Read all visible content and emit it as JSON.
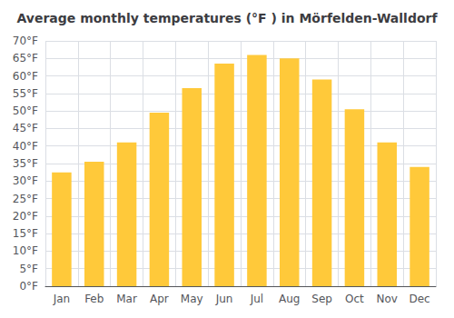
{
  "chart_data": {
    "type": "bar",
    "title": "Average monthly temperatures (°F ) in Mörfelden-Walldorf",
    "categories": [
      "Jan",
      "Feb",
      "Mar",
      "Apr",
      "May",
      "Jun",
      "Jul",
      "Aug",
      "Sep",
      "Oct",
      "Nov",
      "Dec"
    ],
    "values": [
      32.5,
      35.5,
      41.0,
      49.5,
      56.5,
      63.5,
      66.0,
      65.0,
      59.0,
      50.5,
      41.0,
      34.0
    ],
    "color": "#FFC93A",
    "ylim": [
      0,
      70
    ],
    "yticks": [
      {
        "value": 0,
        "label": "0°F"
      },
      {
        "value": 5,
        "label": "5°F"
      },
      {
        "value": 10,
        "label": "10°F"
      },
      {
        "value": 15,
        "label": "15°F"
      },
      {
        "value": 20,
        "label": "20°F"
      },
      {
        "value": 25,
        "label": "25°F"
      },
      {
        "value": 30,
        "label": "30°F"
      },
      {
        "value": 35,
        "label": "35°F"
      },
      {
        "value": 40,
        "label": "40°F"
      },
      {
        "value": 45,
        "label": "45°F"
      },
      {
        "value": 50,
        "label": "50°F"
      },
      {
        "value": 55,
        "label": "55°F"
      },
      {
        "value": 60,
        "label": "60°F"
      },
      {
        "value": 65,
        "label": "65°F"
      },
      {
        "value": 70,
        "label": "70°F"
      }
    ],
    "grid": true
  }
}
